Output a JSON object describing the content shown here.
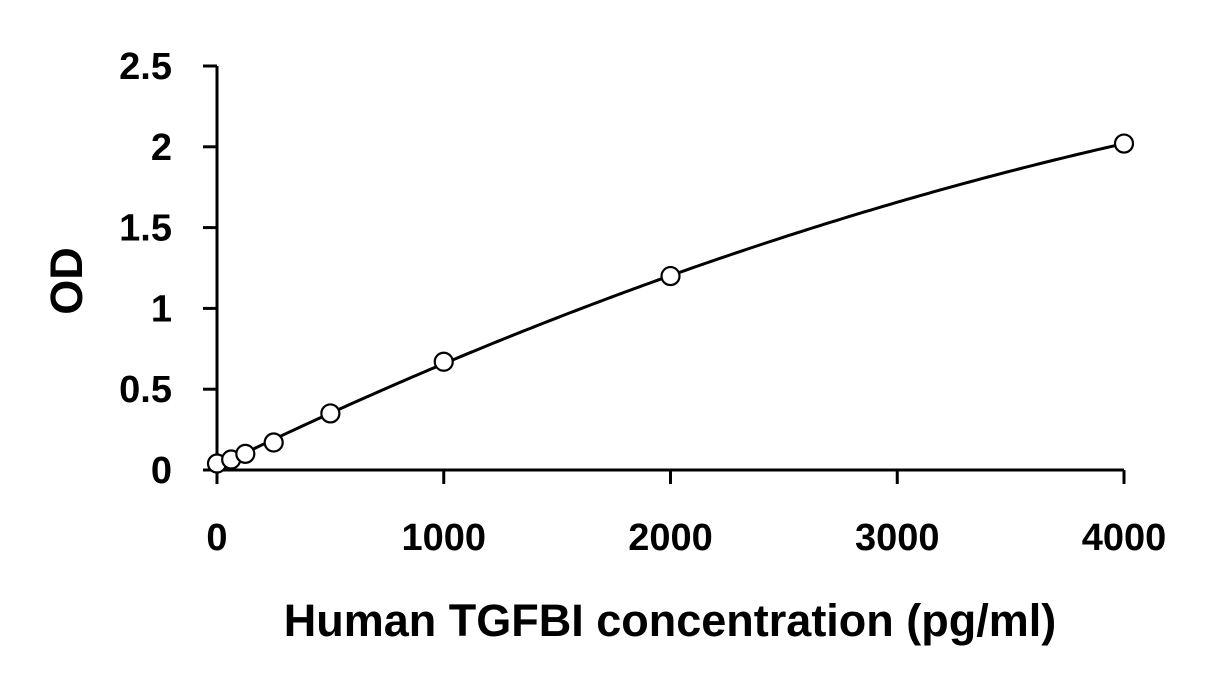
{
  "chart_data": {
    "type": "scatter",
    "title": "",
    "xlabel": "Human TGFBI concentration (pg/ml)",
    "ylabel": "OD",
    "xlim": [
      0,
      4000
    ],
    "ylim": [
      0,
      2.5
    ],
    "x_ticks": [
      "0",
      "1000",
      "2000",
      "3000",
      "4000"
    ],
    "y_ticks": [
      "0",
      "0.5",
      "1",
      "1.5",
      "2",
      "2.5"
    ],
    "grid": false,
    "legend": "none",
    "series": [
      {
        "x": [
          0,
          62.5,
          125,
          250,
          500,
          1000,
          2000,
          4000
        ],
        "y": [
          0.04,
          0.065,
          0.1,
          0.17,
          0.35,
          0.67,
          1.2,
          2.02
        ],
        "marker": "open-circle",
        "fit_line": true
      }
    ],
    "colors": {
      "line": "#000000",
      "marker_fill": "#ffffff",
      "axis": "#000000"
    }
  }
}
